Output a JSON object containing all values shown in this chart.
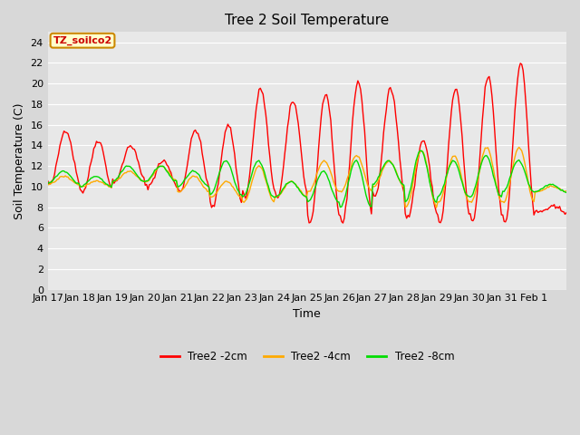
{
  "title": "Tree 2 Soil Temperature",
  "ylabel": "Soil Temperature (C)",
  "xlabel": "Time",
  "annotation": "TZ_soilco2",
  "annotation_color": "#cc0000",
  "annotation_bg": "#ffffcc",
  "annotation_border": "#cc8800",
  "ylim": [
    0,
    25
  ],
  "yticks": [
    0,
    2,
    4,
    6,
    8,
    10,
    12,
    14,
    16,
    18,
    20,
    22,
    24
  ],
  "xtick_labels": [
    "Jan 17",
    "Jan 18",
    "Jan 19",
    "Jan 20",
    "Jan 21",
    "Jan 22",
    "Jan 23",
    "Jan 24",
    "Jan 25",
    "Jan 26",
    "Jan 27",
    "Jan 28",
    "Jan 29",
    "Jan 30",
    "Jan 31",
    "Feb 1"
  ],
  "line_colors": [
    "#ff0000",
    "#ffaa00",
    "#00dd00"
  ],
  "line_labels": [
    "Tree2 -2cm",
    "Tree2 -4cm",
    "Tree2 -8cm"
  ],
  "line_width": 1.0,
  "fig_bg_color": "#d8d8d8",
  "plot_bg_color": "#e8e8e8",
  "grid_color": "#ffffff",
  "title_fontsize": 11,
  "label_fontsize": 9,
  "tick_fontsize": 8
}
